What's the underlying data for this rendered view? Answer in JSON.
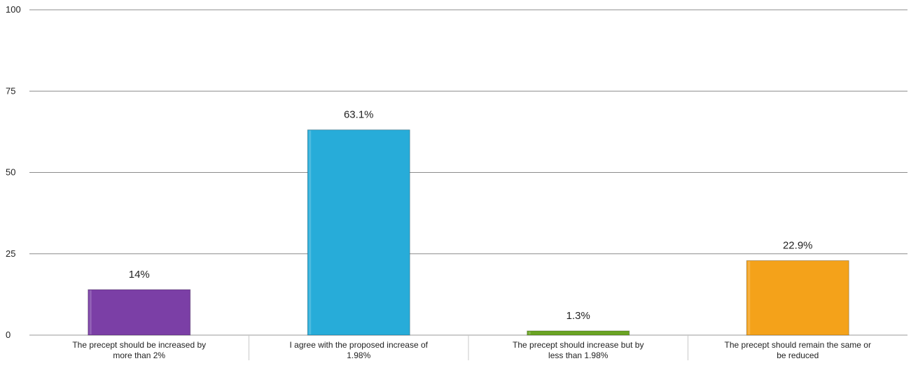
{
  "chart_data": {
    "type": "bar",
    "categories": [
      [
        "The precept should be increased by",
        "more than 2%"
      ],
      [
        "I agree with the proposed increase of",
        "1.98%"
      ],
      [
        "The precept should increase but by",
        "less than 1.98%"
      ],
      [
        "The precept should remain the same or",
        "be reduced"
      ]
    ],
    "values": [
      14,
      63.1,
      1.3,
      22.9
    ],
    "value_labels": [
      "14%",
      "63.1%",
      "1.3%",
      "22.9%"
    ],
    "colors": [
      "#7b3fa6",
      "#27acd9",
      "#6aa423",
      "#f4a21a"
    ],
    "ylim": [
      0,
      100
    ],
    "yticks": [
      0,
      25,
      50,
      75,
      100
    ],
    "title": "",
    "xlabel": "",
    "ylabel": "",
    "grid": true,
    "legend": "none"
  }
}
